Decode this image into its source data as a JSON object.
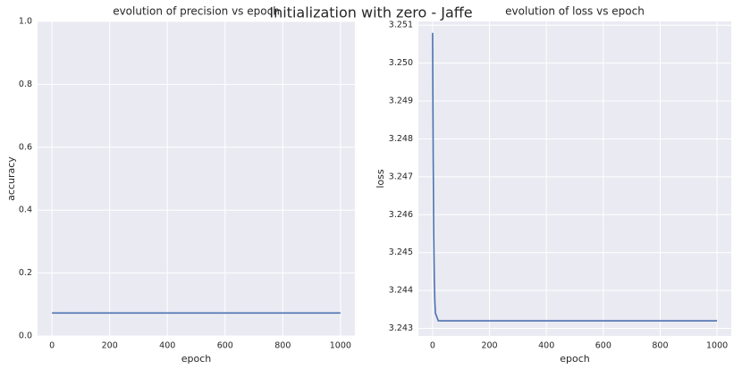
{
  "title": "Initialization with zero - Jaffe",
  "chart_data": [
    {
      "type": "line",
      "title": "evolution of precision vs epoch",
      "x_label": "epoch",
      "y_label": "accuracy",
      "x": [
        0,
        1000
      ],
      "values": [
        0.073,
        0.073
      ],
      "color": "#4c72b0",
      "xlim": [
        -50,
        1050
      ],
      "xticks": [
        0,
        200,
        400,
        600,
        800,
        1000
      ],
      "ylim": [
        0,
        1
      ],
      "yticks": [
        {
          "value": 0,
          "label": "0.0"
        },
        0.2,
        0.4,
        0.6,
        0.8,
        {
          "value": 1,
          "label": "1.0"
        }
      ],
      "grid": true
    },
    {
      "type": "line",
      "title": "evolution of loss vs epoch",
      "x_label": "epoch",
      "y_label": "loss",
      "x": [
        0,
        2,
        4,
        6,
        8,
        10,
        15,
        20,
        30,
        50,
        1000
      ],
      "values": [
        3.2508,
        3.2475,
        3.2455,
        3.2443,
        3.2437,
        3.2434,
        3.2433,
        3.2432,
        3.2432,
        3.2432,
        3.2432
      ],
      "color": "#4c72b0",
      "xlim": [
        -50,
        1050
      ],
      "xticks": [
        0,
        200,
        400,
        600,
        800,
        1000
      ],
      "ylim": [
        3.2428,
        3.2511
      ],
      "yticks": [
        3.243,
        3.244,
        3.245,
        3.246,
        3.247,
        3.248,
        3.249,
        {
          "value": 3.25,
          "label": "3.250"
        },
        3.251
      ],
      "grid": true
    }
  ]
}
